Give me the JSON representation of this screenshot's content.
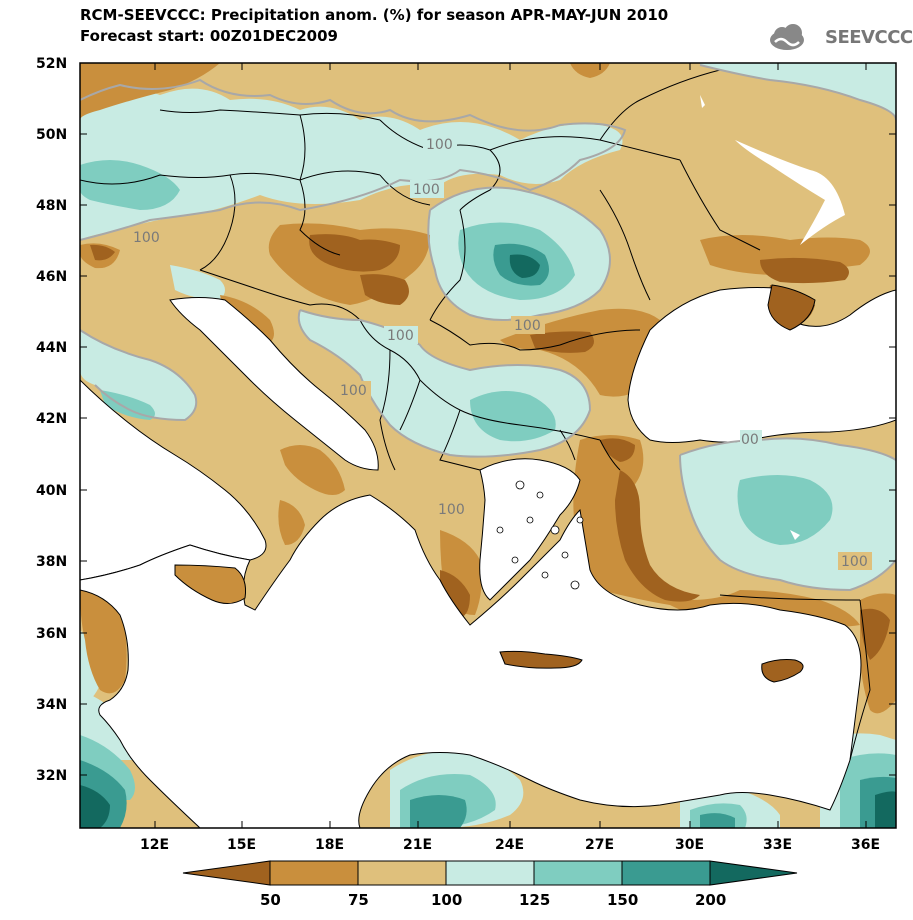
{
  "header": {
    "title_line1": "RCM-SEEVCCC: Precipitation anom. (%) for season APR-MAY-JUN 2010",
    "title_line2": "Forecast start: 00Z01DEC2009",
    "logo_text": "SEEVCCC"
  },
  "map": {
    "lat_labels": [
      "52N",
      "50N",
      "48N",
      "46N",
      "44N",
      "42N",
      "40N",
      "38N",
      "36N",
      "34N",
      "32N"
    ],
    "lon_labels": [
      "12E",
      "15E",
      "18E",
      "21E",
      "24E",
      "27E",
      "30E",
      "33E",
      "36E"
    ],
    "contour_labels": [
      "100",
      "100",
      "100",
      "100",
      "100",
      "100",
      "100",
      "100",
      "100",
      "100",
      "00"
    ],
    "sea_color": "#ffffff",
    "border_color": "#000000"
  },
  "colorbar": {
    "labels": [
      "50",
      "75",
      "100",
      "125",
      "150",
      "200"
    ],
    "bins": [
      {
        "range": "<50",
        "color": "#a0621f"
      },
      {
        "range": "50-75",
        "color": "#c98f3d"
      },
      {
        "range": "75-100",
        "color": "#dfc07c"
      },
      {
        "range": "100-125",
        "color": "#c8ebe3"
      },
      {
        "range": "125-150",
        "color": "#7fcdc0"
      },
      {
        "range": "150-200",
        "color": "#3a9b91"
      },
      {
        "range": ">200",
        "color": "#13695f"
      }
    ]
  }
}
